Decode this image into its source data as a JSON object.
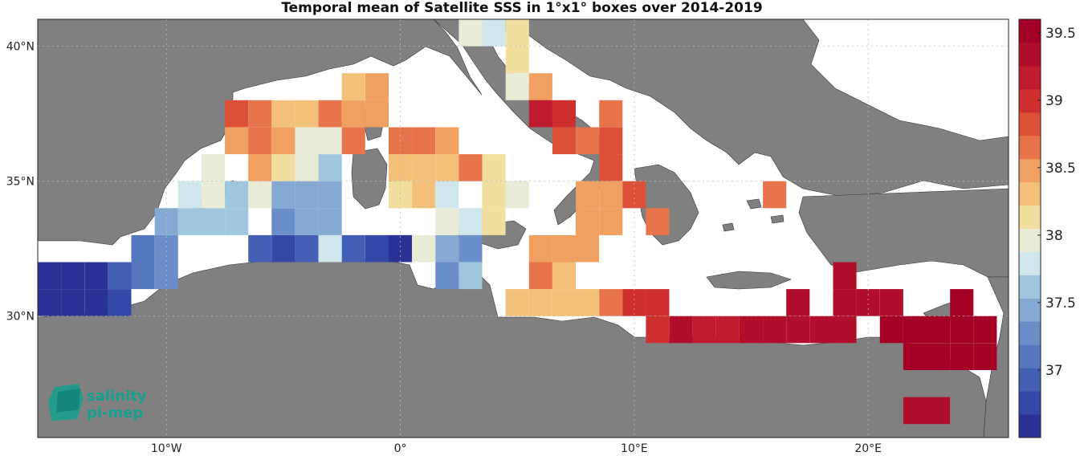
{
  "title": "Temporal mean of Satellite SSS in 1°x1° boxes over 2014-2019",
  "logo": {
    "line1": "salinity",
    "line2": "pi-mep",
    "color": "#13a08e"
  },
  "colors": {
    "land": "#808080",
    "sea": "#ffffff",
    "frame": "#222222"
  },
  "axes": {
    "lon_range": [
      -15.5,
      26
    ],
    "lat_range": [
      25.5,
      41
    ],
    "x_ticks": [
      {
        "value": -10,
        "label": "10°W"
      },
      {
        "value": 0,
        "label": "0°"
      },
      {
        "value": 10,
        "label": "10°E"
      },
      {
        "value": 20,
        "label": "20°E"
      }
    ],
    "y_ticks": [
      {
        "value": 30,
        "label": "30°N"
      },
      {
        "value": 35,
        "label": "35°N"
      },
      {
        "value": 40,
        "label": "40°N"
      }
    ]
  },
  "colorbar": {
    "min": 36.5,
    "max": 39.6,
    "ticks": [
      {
        "value": 37,
        "label": "37"
      },
      {
        "value": 37.5,
        "label": "37.5"
      },
      {
        "value": 38,
        "label": "38"
      },
      {
        "value": 38.5,
        "label": "38.5"
      },
      {
        "value": 39,
        "label": "39"
      },
      {
        "value": 39.5,
        "label": "39.5"
      }
    ],
    "colors": [
      "#2b3296",
      "#3347a6",
      "#4460b4",
      "#5477bd",
      "#6a8ec8",
      "#84a9d2",
      "#9ec6de",
      "#cfe6ec",
      "#e8ebd6",
      "#f2df9f",
      "#f3c07a",
      "#f0a061",
      "#e7744a",
      "#dc5038",
      "#cf2f2f",
      "#c01a2e",
      "#b00e2a",
      "#a50026"
    ]
  },
  "chart_data": {
    "type": "heatmap",
    "title": "Temporal mean of Satellite SSS in 1°x1° boxes over 2014-2019",
    "xlabel": "",
    "ylabel": "",
    "units": "",
    "cells": [
      {
        "lon": -15,
        "lat": 30.5,
        "sss": 36.6
      },
      {
        "lon": -15,
        "lat": 31.5,
        "sss": 36.6
      },
      {
        "lon": -14,
        "lat": 30.5,
        "sss": 36.6
      },
      {
        "lon": -14,
        "lat": 31.5,
        "sss": 36.6
      },
      {
        "lon": -13,
        "lat": 30.5,
        "sss": 36.6
      },
      {
        "lon": -13,
        "lat": 31.5,
        "sss": 36.6
      },
      {
        "lon": -12,
        "lat": 30.5,
        "sss": 36.8
      },
      {
        "lon": -12,
        "lat": 31.5,
        "sss": 37.0
      },
      {
        "lon": -11,
        "lat": 31.5,
        "sss": 37.1
      },
      {
        "lon": -11,
        "lat": 32.5,
        "sss": 37.1
      },
      {
        "lon": -10,
        "lat": 31.5,
        "sss": 37.2
      },
      {
        "lon": -10,
        "lat": 32.5,
        "sss": 37.2
      },
      {
        "lon": -10,
        "lat": 33.5,
        "sss": 37.4
      },
      {
        "lon": -9,
        "lat": 33.5,
        "sss": 37.6
      },
      {
        "lon": -9,
        "lat": 34.5,
        "sss": 37.8
      },
      {
        "lon": -8,
        "lat": 33.5,
        "sss": 37.6
      },
      {
        "lon": -8,
        "lat": 34.5,
        "sss": 38.0
      },
      {
        "lon": -8,
        "lat": 35.5,
        "sss": 38.0
      },
      {
        "lon": -7,
        "lat": 33.5,
        "sss": 37.6
      },
      {
        "lon": -7,
        "lat": 34.5,
        "sss": 37.6
      },
      {
        "lon": -6,
        "lat": 32.5,
        "sss": 36.9
      },
      {
        "lon": -6,
        "lat": 34.5,
        "sss": 38.0
      },
      {
        "lon": -6,
        "lat": 35.5,
        "sss": 38.5
      },
      {
        "lon": -5,
        "lat": 32.5,
        "sss": 36.7
      },
      {
        "lon": -5,
        "lat": 33.5,
        "sss": 37.2
      },
      {
        "lon": -5,
        "lat": 34.5,
        "sss": 37.4
      },
      {
        "lon": -5,
        "lat": 35.5,
        "sss": 38.1
      },
      {
        "lon": -4,
        "lat": 32.5,
        "sss": 37.0
      },
      {
        "lon": -4,
        "lat": 33.5,
        "sss": 37.4
      },
      {
        "lon": -4,
        "lat": 34.5,
        "sss": 37.4
      },
      {
        "lon": -4,
        "lat": 35.5,
        "sss": 38.0
      },
      {
        "lon": -3,
        "lat": 32.5,
        "sss": 37.8
      },
      {
        "lon": -3,
        "lat": 33.5,
        "sss": 37.4
      },
      {
        "lon": -3,
        "lat": 34.5,
        "sss": 37.4
      },
      {
        "lon": -3,
        "lat": 35.5,
        "sss": 37.7
      },
      {
        "lon": -2,
        "lat": 32.5,
        "sss": 37.0
      },
      {
        "lon": -1,
        "lat": 32.5,
        "sss": 36.7
      },
      {
        "lon": 0,
        "lat": 32.5,
        "sss": 36.6
      },
      {
        "lon": 1,
        "lat": 32.5,
        "sss": 37.9
      },
      {
        "lon": 2,
        "lat": 32.5,
        "sss": 37.5
      },
      {
        "lon": 2,
        "lat": 31.5,
        "sss": 37.3
      },
      {
        "lon": 3,
        "lat": 32.5,
        "sss": 37.3
      },
      {
        "lon": 3,
        "lat": 31.5,
        "sss": 37.6
      },
      {
        "lon": -7,
        "lat": 36.5,
        "sss": 38.5
      },
      {
        "lon": -6,
        "lat": 36.5,
        "sss": 38.7
      },
      {
        "lon": -5,
        "lat": 36.5,
        "sss": 38.5
      },
      {
        "lon": -4,
        "lat": 36.5,
        "sss": 38.0
      },
      {
        "lon": -3,
        "lat": 36.5,
        "sss": 38.0
      },
      {
        "lon": -7,
        "lat": 37.5,
        "sss": 38.9
      },
      {
        "lon": -6,
        "lat": 37.5,
        "sss": 38.6
      },
      {
        "lon": -5,
        "lat": 37.5,
        "sss": 38.3
      },
      {
        "lon": -4,
        "lat": 37.5,
        "sss": 38.3
      },
      {
        "lon": -3,
        "lat": 37.5,
        "sss": 38.7
      },
      {
        "lon": -2,
        "lat": 37.5,
        "sss": 38.4
      },
      {
        "lon": -2,
        "lat": 38.5,
        "sss": 38.3
      },
      {
        "lon": -1,
        "lat": 38.5,
        "sss": 38.4
      },
      {
        "lon": -1,
        "lat": 37.5,
        "sss": 38.5
      },
      {
        "lon": -2,
        "lat": 36.5,
        "sss": 38.6
      },
      {
        "lon": 0,
        "lat": 35.5,
        "sss": 38.3
      },
      {
        "lon": 0,
        "lat": 36.5,
        "sss": 38.6
      },
      {
        "lon": 0,
        "lat": 34.5,
        "sss": 38.1
      },
      {
        "lon": 1,
        "lat": 36.5,
        "sss": 38.6
      },
      {
        "lon": 1,
        "lat": 35.5,
        "sss": 38.3
      },
      {
        "lon": 1,
        "lat": 34.5,
        "sss": 38.3
      },
      {
        "lon": 2,
        "lat": 36.5,
        "sss": 38.4
      },
      {
        "lon": 2,
        "lat": 35.5,
        "sss": 38.3
      },
      {
        "lon": 2,
        "lat": 34.5,
        "sss": 37.8
      },
      {
        "lon": 2,
        "lat": 33.5,
        "sss": 38.0
      },
      {
        "lon": 3,
        "lat": 35.5,
        "sss": 38.6
      },
      {
        "lon": 3,
        "lat": 33.5,
        "sss": 37.8
      },
      {
        "lon": 4,
        "lat": 35.5,
        "sss": 38.1
      },
      {
        "lon": 4,
        "lat": 34.5,
        "sss": 38.1
      },
      {
        "lon": 4,
        "lat": 33.5,
        "sss": 38.1
      },
      {
        "lon": 5,
        "lat": 34.5,
        "sss": 38.0
      },
      {
        "lon": 3,
        "lat": 40.5,
        "sss": 38.0
      },
      {
        "lon": 4,
        "lat": 40.5,
        "sss": 37.8
      },
      {
        "lon": 5,
        "lat": 39.5,
        "sss": 38.1
      },
      {
        "lon": 5,
        "lat": 40.5,
        "sss": 38.1
      },
      {
        "lon": 5,
        "lat": 38.5,
        "sss": 38.0
      },
      {
        "lon": 6,
        "lat": 38.5,
        "sss": 38.5
      },
      {
        "lon": 6,
        "lat": 37.5,
        "sss": 39.2
      },
      {
        "lon": 7,
        "lat": 37.5,
        "sss": 39.0
      },
      {
        "lon": 7,
        "lat": 36.5,
        "sss": 38.9
      },
      {
        "lon": 8,
        "lat": 36.5,
        "sss": 38.7
      },
      {
        "lon": 9,
        "lat": 36.5,
        "sss": 38.8
      },
      {
        "lon": 9,
        "lat": 37.5,
        "sss": 38.7
      },
      {
        "lon": 9,
        "lat": 35.5,
        "sss": 38.9
      },
      {
        "lon": 8,
        "lat": 34.5,
        "sss": 38.5
      },
      {
        "lon": 9,
        "lat": 34.5,
        "sss": 38.5
      },
      {
        "lon": 10,
        "lat": 34.5,
        "sss": 38.9
      },
      {
        "lon": 8,
        "lat": 33.5,
        "sss": 38.5
      },
      {
        "lon": 9,
        "lat": 33.5,
        "sss": 38.5
      },
      {
        "lon": 11,
        "lat": 33.5,
        "sss": 38.7
      },
      {
        "lon": 7,
        "lat": 32.5,
        "sss": 38.5
      },
      {
        "lon": 8,
        "lat": 32.5,
        "sss": 38.5
      },
      {
        "lon": 6,
        "lat": 32.5,
        "sss": 38.5
      },
      {
        "lon": 6,
        "lat": 31.5,
        "sss": 38.6
      },
      {
        "lon": 7,
        "lat": 31.5,
        "sss": 38.3
      },
      {
        "lon": 5,
        "lat": 30.5,
        "sss": 38.3
      },
      {
        "lon": 6,
        "lat": 30.5,
        "sss": 38.3
      },
      {
        "lon": 7,
        "lat": 30.5,
        "sss": 38.3
      },
      {
        "lon": 8,
        "lat": 30.5,
        "sss": 38.3
      },
      {
        "lon": 9,
        "lat": 30.5,
        "sss": 38.7
      },
      {
        "lon": 10,
        "lat": 30.5,
        "sss": 39.0
      },
      {
        "lon": 11,
        "lat": 30.5,
        "sss": 39.0
      },
      {
        "lon": 11,
        "lat": 29.5,
        "sss": 39.0
      },
      {
        "lon": 12,
        "lat": 29.5,
        "sss": 39.3
      },
      {
        "lon": 13,
        "lat": 29.5,
        "sss": 39.1
      },
      {
        "lon": 14,
        "lat": 29.5,
        "sss": 39.1
      },
      {
        "lon": 15,
        "lat": 29.5,
        "sss": 39.3
      },
      {
        "lon": 16,
        "lat": 29.5,
        "sss": 39.3
      },
      {
        "lon": 17,
        "lat": 29.5,
        "sss": 39.4
      },
      {
        "lon": 18,
        "lat": 29.5,
        "sss": 39.4
      },
      {
        "lon": 19,
        "lat": 29.5,
        "sss": 39.4
      },
      {
        "lon": 17,
        "lat": 30.5,
        "sss": 39.4
      },
      {
        "lon": 19,
        "lat": 30.5,
        "sss": 39.4
      },
      {
        "lon": 19,
        "lat": 31.5,
        "sss": 39.4
      },
      {
        "lon": 20,
        "lat": 30.5,
        "sss": 39.4
      },
      {
        "lon": 21,
        "lat": 30.5,
        "sss": 39.4
      },
      {
        "lon": 21,
        "lat": 29.5,
        "sss": 39.5
      },
      {
        "lon": 22,
        "lat": 29.5,
        "sss": 39.5
      },
      {
        "lon": 23,
        "lat": 29.5,
        "sss": 39.5
      },
      {
        "lon": 24,
        "lat": 29.5,
        "sss": 39.5
      },
      {
        "lon": 25,
        "lat": 29.5,
        "sss": 39.5
      },
      {
        "lon": 22,
        "lat": 28.5,
        "sss": 39.5
      },
      {
        "lon": 23,
        "lat": 28.5,
        "sss": 39.5
      },
      {
        "lon": 24,
        "lat": 28.5,
        "sss": 39.5
      },
      {
        "lon": 25,
        "lat": 28.5,
        "sss": 39.5
      },
      {
        "lon": 24,
        "lat": 30.5,
        "sss": 39.5
      },
      {
        "lon": 16,
        "lat": 34.5,
        "sss": 38.7
      },
      {
        "lon": 22,
        "lat": 26.5,
        "sss": 39.4
      },
      {
        "lon": 23,
        "lat": 26.5,
        "sss": 39.3
      }
    ]
  }
}
